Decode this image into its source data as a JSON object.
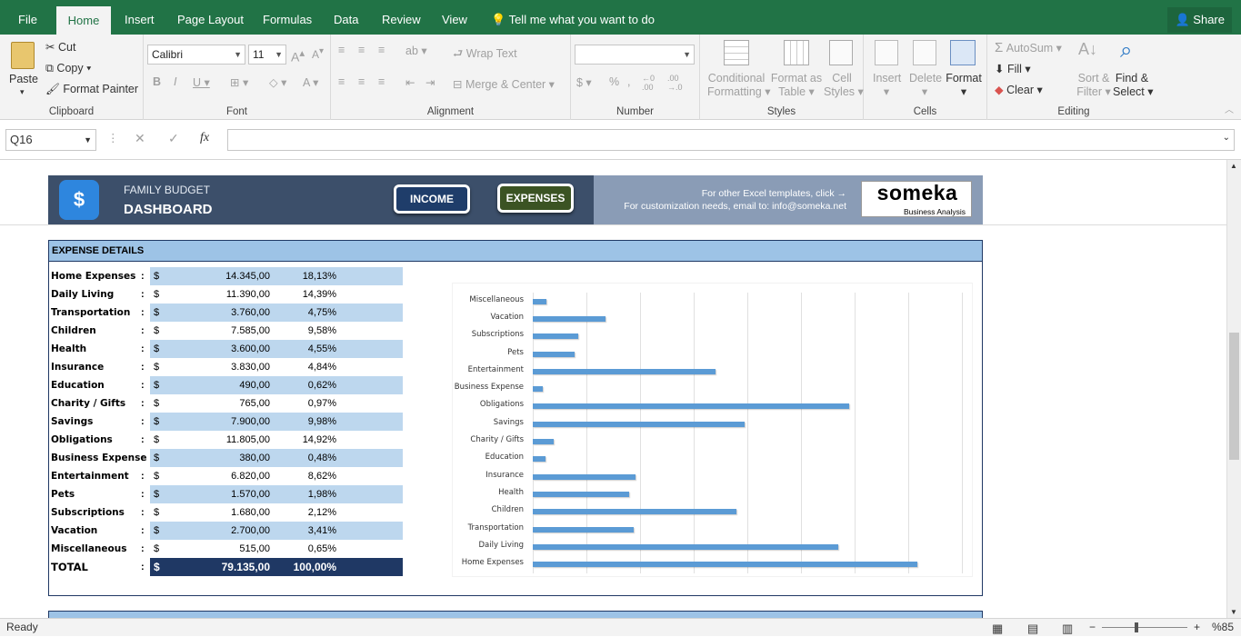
{
  "menu": {
    "tabs": [
      "File",
      "Home",
      "Insert",
      "Page Layout",
      "Formulas",
      "Data",
      "Review",
      "View"
    ],
    "tell_me": "Tell me what you want to do",
    "share": "Share"
  },
  "ribbon": {
    "clipboard": {
      "paste": "Paste",
      "cut": "Cut",
      "copy": "Copy",
      "format_painter": "Format Painter",
      "label": "Clipboard"
    },
    "font": {
      "name": "Calibri",
      "size": "11",
      "label": "Font"
    },
    "alignment": {
      "wrap_text": "Wrap Text",
      "merge_center": "Merge & Center",
      "label": "Alignment"
    },
    "number": {
      "label": "Number"
    },
    "styles": {
      "conditional": "Conditional",
      "formatting": "Formatting",
      "format_as": "Format as",
      "table": "Table",
      "cell": "Cell",
      "styles": "Styles",
      "label": "Styles"
    },
    "cells": {
      "insert": "Insert",
      "delete": "Delete",
      "format": "Format",
      "label": "Cells"
    },
    "editing": {
      "autosum": "AutoSum",
      "fill": "Fill",
      "clear": "Clear",
      "sort": "Sort &",
      "filter": "Filter",
      "find": "Find &",
      "select": "Select",
      "label": "Editing"
    }
  },
  "formula_bar": {
    "name_box": "Q16",
    "fx": "fx"
  },
  "dashboard": {
    "subtitle": "FAMILY BUDGET",
    "title": "DASHBOARD",
    "income_btn": "INCOME",
    "expenses_btn": "EXPENSES",
    "promo1": "For other Excel templates, click →",
    "promo2": "For customization needs, email to: info@someka.net",
    "logo_main": "someka",
    "logo_sub": "Business Analysis"
  },
  "expense_details": {
    "header": "EXPENSE DETAILS",
    "currency": "$",
    "rows": [
      {
        "label": "Home Expenses",
        "amount": "14.345,00",
        "pct": "18,13%"
      },
      {
        "label": "Daily Living",
        "amount": "11.390,00",
        "pct": "14,39%"
      },
      {
        "label": "Transportation",
        "amount": "3.760,00",
        "pct": "4,75%"
      },
      {
        "label": "Children",
        "amount": "7.585,00",
        "pct": "9,58%"
      },
      {
        "label": "Health",
        "amount": "3.600,00",
        "pct": "4,55%"
      },
      {
        "label": "Insurance",
        "amount": "3.830,00",
        "pct": "4,84%"
      },
      {
        "label": "Education",
        "amount": "490,00",
        "pct": "0,62%"
      },
      {
        "label": "Charity / Gifts",
        "amount": "765,00",
        "pct": "0,97%"
      },
      {
        "label": "Savings",
        "amount": "7.900,00",
        "pct": "9,98%"
      },
      {
        "label": "Obligations",
        "amount": "11.805,00",
        "pct": "14,92%"
      },
      {
        "label": "Business Expense",
        "amount": "380,00",
        "pct": "0,48%"
      },
      {
        "label": "Entertainment",
        "amount": "6.820,00",
        "pct": "8,62%"
      },
      {
        "label": "Pets",
        "amount": "1.570,00",
        "pct": "1,98%"
      },
      {
        "label": "Subscriptions",
        "amount": "1.680,00",
        "pct": "2,12%"
      },
      {
        "label": "Vacation",
        "amount": "2.700,00",
        "pct": "3,41%"
      },
      {
        "label": "Miscellaneous",
        "amount": "515,00",
        "pct": "0,65%"
      }
    ],
    "total": {
      "label": "TOTAL",
      "amount": "79.135,00",
      "pct": "100,00%"
    }
  },
  "chart_data": {
    "type": "bar",
    "orientation": "horizontal",
    "categories": [
      "Miscellaneous",
      "Vacation",
      "Subscriptions",
      "Pets",
      "Entertainment",
      "Business Expense",
      "Obligations",
      "Savings",
      "Charity / Gifts",
      "Education",
      "Insurance",
      "Health",
      "Children",
      "Transportation",
      "Daily Living",
      "Home Expenses"
    ],
    "values": [
      515,
      2700,
      1680,
      1570,
      6820,
      380,
      11805,
      7900,
      765,
      490,
      3830,
      3600,
      7585,
      3760,
      11390,
      14345
    ],
    "xlim": [
      0,
      16000
    ],
    "grid": true,
    "color": "#5b9bd5"
  },
  "status": {
    "ready": "Ready",
    "zoom": "%85"
  }
}
